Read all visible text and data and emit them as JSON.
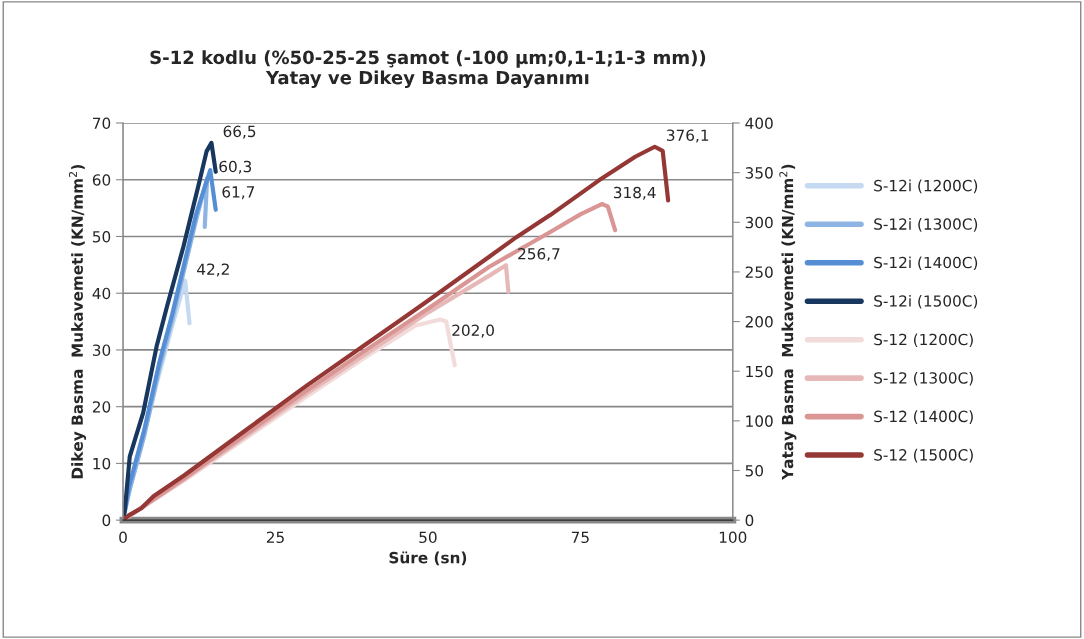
{
  "chart_data": {
    "type": "line",
    "title": "S-12 kodlu (%50-25-25 şamot (-100 µm;0,1-1;1-3 mm))\nYatay ve Dikey Basma Dayanımı",
    "xlabel": "Süre (sn)",
    "ylabel": "Dikey Basma  Mukavemeti (KN/mm$^{2}$)",
    "y2label": "Yatay Basma  Mukavemeti (KN/mm$^{2}$)",
    "xlim": [
      0,
      100
    ],
    "xticks": [
      0,
      25,
      50,
      75,
      100
    ],
    "ylim": [
      0,
      70
    ],
    "yticks": [
      0,
      10,
      20,
      30,
      40,
      50,
      60,
      70
    ],
    "y2lim": [
      0,
      400
    ],
    "y2ticks": [
      0,
      50,
      100,
      150,
      200,
      250,
      300,
      350,
      400
    ],
    "grid": "y",
    "legend": "right",
    "line_style": "solid",
    "marker": "none",
    "series": [
      {
        "name": "S-12i (1200C)",
        "color": "#c5d9f1",
        "x": [
          0,
          1,
          3,
          5.5,
          8,
          10.2,
          10.9
        ],
        "values": [
          0,
          5,
          13,
          24,
          34,
          42.2,
          34.7
        ],
        "value_labels": [
          null,
          null,
          null,
          null,
          null,
          "42,2",
          null
        ]
      },
      {
        "name": "S-12i (1300C)",
        "color": "#8db4e2",
        "x": [
          0,
          1,
          3.5,
          6,
          8,
          10,
          12,
          13.8,
          13.4
        ],
        "values": [
          0,
          5,
          15,
          27,
          35,
          44,
          53,
          60.3,
          51.7
        ],
        "value_labels": [
          null,
          null,
          null,
          null,
          null,
          null,
          null,
          "60,3",
          null
        ]
      },
      {
        "name": "S-12i (1400C)",
        "color": "#558ed5",
        "x": [
          0,
          1,
          3.5,
          6,
          8,
          10,
          12,
          14.3,
          15.2
        ],
        "values": [
          0,
          6,
          16,
          28,
          36,
          45,
          54,
          61.7,
          54.7
        ],
        "value_labels": [
          null,
          null,
          null,
          null,
          null,
          null,
          null,
          "61,7",
          null
        ]
      },
      {
        "name": "S-12i (1500C)",
        "color": "#17375e",
        "x": [
          0,
          0.3,
          1.1,
          3.3,
          5.5,
          7.2,
          9.9,
          12.6,
          13.7,
          14.5,
          15.2
        ],
        "values": [
          0,
          1.8,
          11.2,
          18.9,
          30.6,
          37.6,
          48.2,
          60,
          65,
          66.5,
          61.4
        ],
        "value_labels": [
          null,
          null,
          null,
          null,
          null,
          null,
          null,
          null,
          null,
          "66,5",
          null
        ]
      },
      {
        "name": "S-12 (1200C)",
        "color": "#f2dcdb",
        "axis": "y2",
        "x": [
          0,
          10,
          20,
          30,
          40,
          48,
          52,
          53,
          54.4
        ],
        "values": [
          0,
          40,
          82,
          124,
          165,
          196,
          202.0,
          200,
          156
        ],
        "value_labels": [
          null,
          null,
          null,
          null,
          null,
          null,
          "202,0",
          null,
          null
        ]
      },
      {
        "name": "S-12 (1300C)",
        "color": "#e6b9b8",
        "axis": "y2",
        "x": [
          0,
          10,
          20,
          30,
          40,
          50,
          60,
          62.8,
          63.2
        ],
        "values": [
          0,
          41,
          84,
          127,
          168,
          209,
          246,
          256.7,
          230
        ],
        "value_labels": [
          null,
          null,
          null,
          null,
          null,
          null,
          null,
          "256,7",
          null
        ]
      },
      {
        "name": "S-12 (1400C)",
        "color": "#d99694",
        "axis": "y2",
        "x": [
          0,
          10,
          20,
          30,
          40,
          50,
          60,
          70,
          75,
          78.5,
          79.5,
          80.7
        ],
        "values": [
          0,
          42,
          86,
          130,
          172,
          213,
          255,
          290,
          308,
          318.4,
          316,
          292
        ],
        "value_labels": [
          null,
          null,
          null,
          null,
          null,
          null,
          null,
          null,
          null,
          "318,4",
          null,
          null
        ]
      },
      {
        "name": "S-12 (1500C)",
        "color": "#953735",
        "axis": "y2",
        "x": [
          0,
          1,
          3,
          5,
          10,
          20,
          30,
          40,
          45.4,
          50,
          60,
          64.5,
          70,
          78,
          84,
          87.2,
          88.5,
          89.4
        ],
        "values": [
          0,
          5,
          12,
          24,
          45,
          90,
          135,
          178,
          201,
          221,
          265,
          285,
          307,
          342,
          366,
          376.1,
          372,
          322
        ],
        "value_labels": [
          null,
          null,
          null,
          null,
          null,
          null,
          null,
          null,
          null,
          null,
          null,
          null,
          null,
          null,
          null,
          "376,1",
          null,
          null
        ]
      }
    ]
  }
}
